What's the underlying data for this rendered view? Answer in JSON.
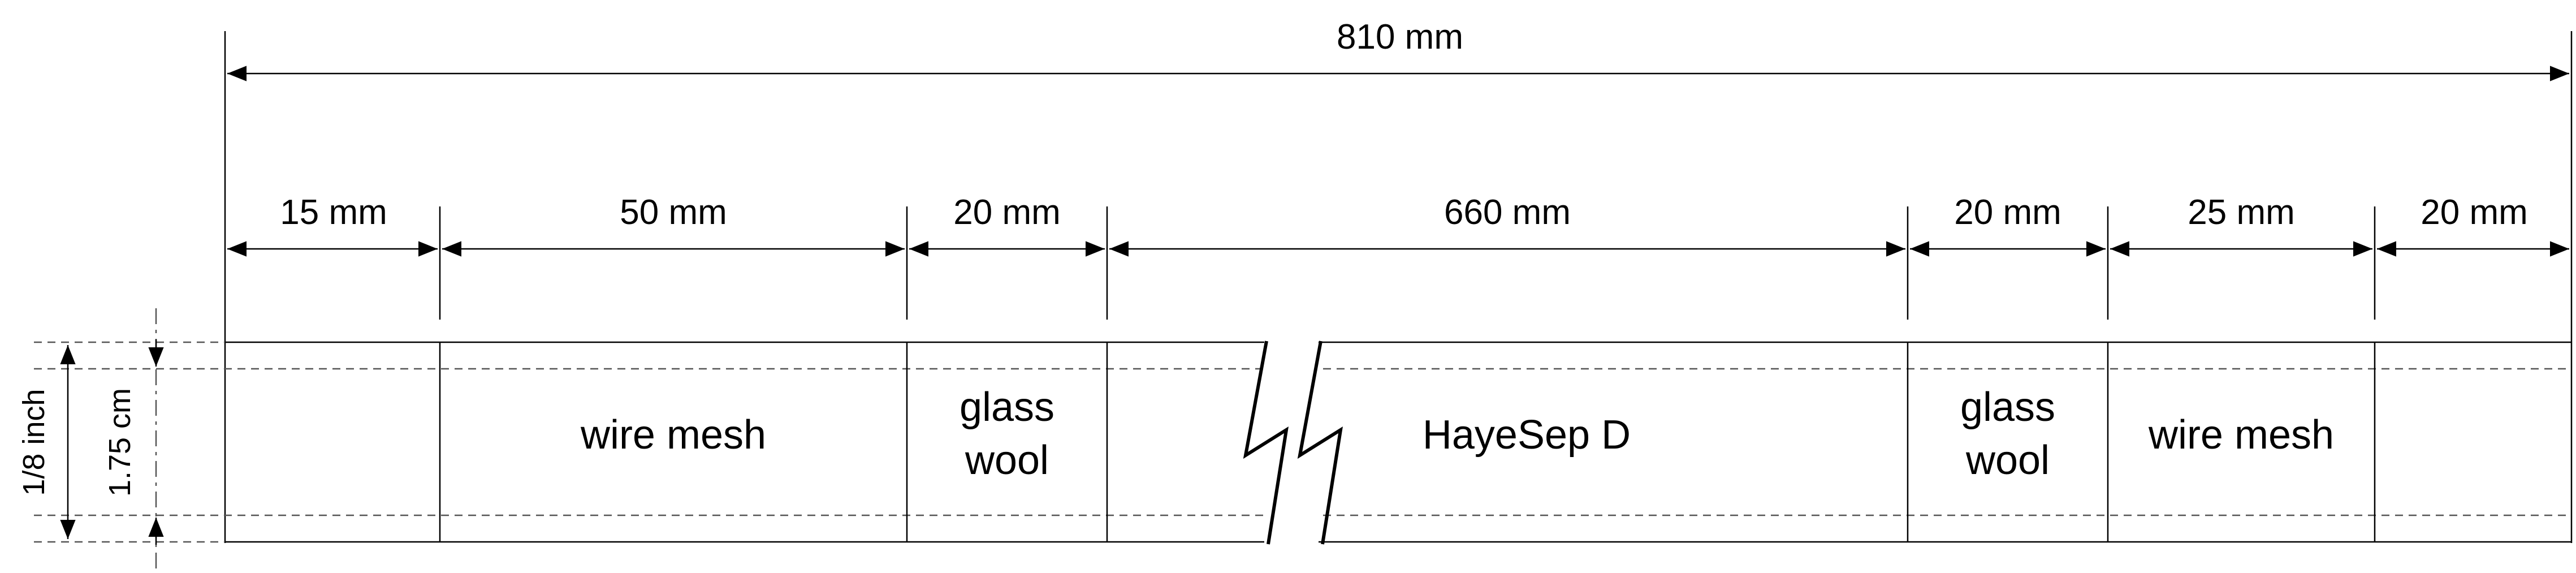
{
  "diagram": {
    "total_length": "810 mm",
    "segments": [
      {
        "length": "15 mm",
        "label": ""
      },
      {
        "length": "50 mm",
        "label": "wire mesh"
      },
      {
        "length": "20 mm",
        "label_line1": "glass",
        "label_line2": "wool"
      },
      {
        "length": "660 mm",
        "label": "HayeSep D"
      },
      {
        "length": "20 mm",
        "label_line1": "glass",
        "label_line2": "wool"
      },
      {
        "length": "25 mm",
        "label": "wire mesh"
      },
      {
        "length": "20 mm",
        "label": ""
      }
    ],
    "outer_diameter": "1/8 inch",
    "inner_diameter": "1.75 cm"
  }
}
